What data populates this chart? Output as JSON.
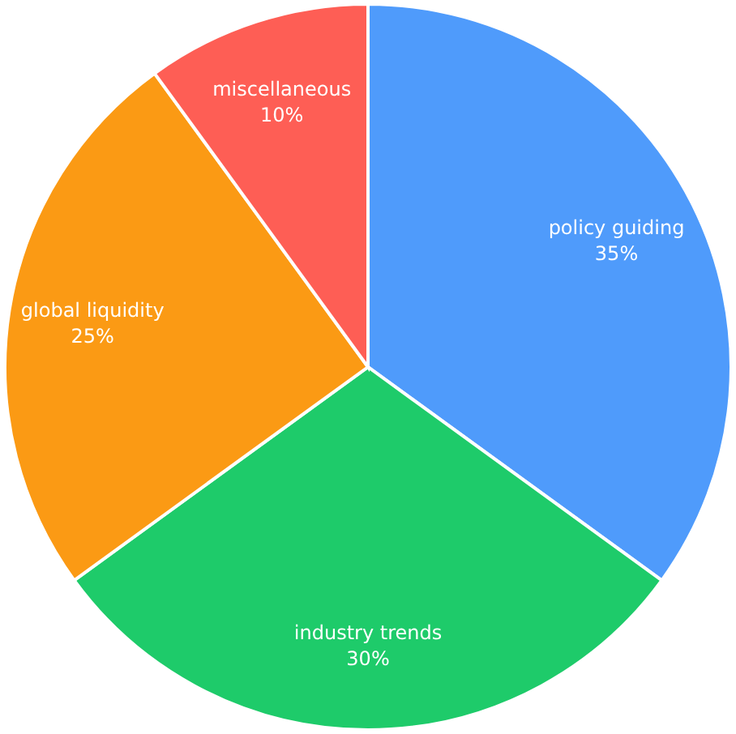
{
  "chart_data": {
    "type": "pie",
    "categories": [
      "policy guiding",
      "industry trends",
      "global liquidity",
      "miscellaneous"
    ],
    "values": [
      35,
      30,
      25,
      10
    ],
    "value_labels": [
      "35%",
      "30%",
      "25%",
      "10%"
    ],
    "colors": [
      "#4f9bfb",
      "#1ecb6a",
      "#fb9a14",
      "#fe5e55"
    ]
  }
}
